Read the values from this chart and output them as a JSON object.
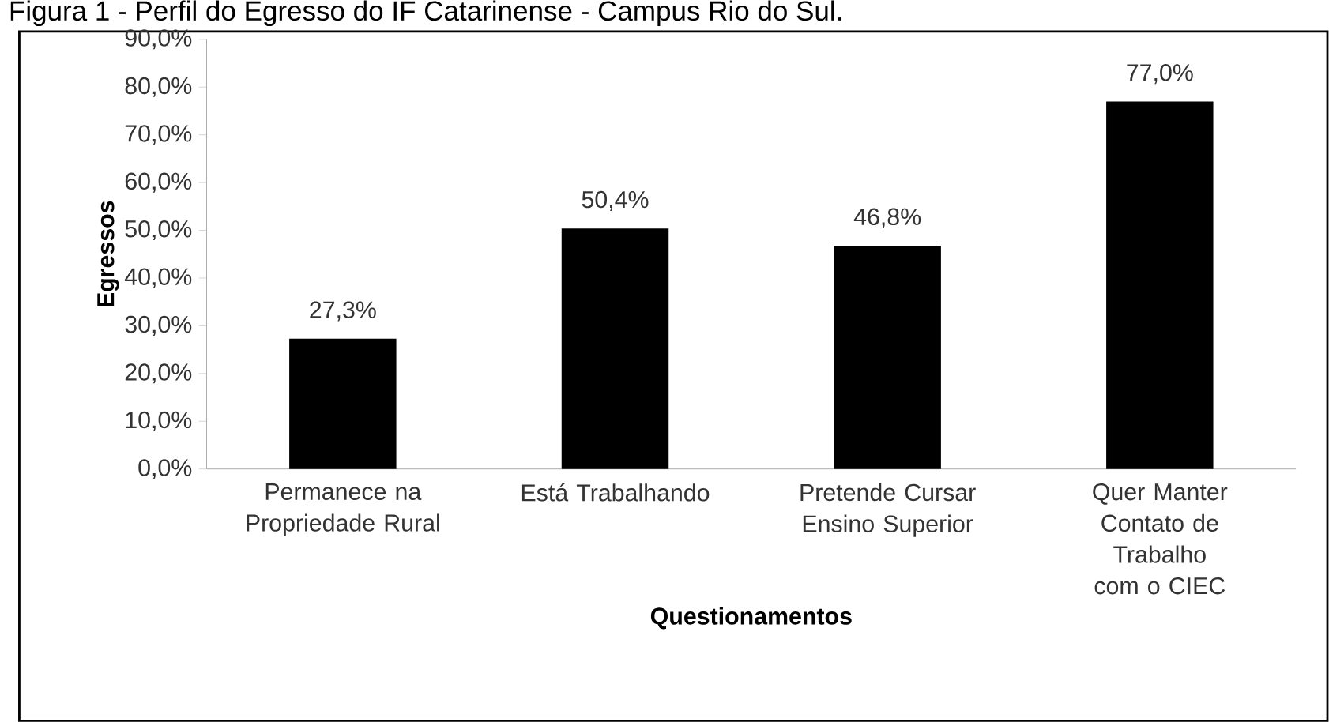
{
  "chart_data": {
    "type": "bar",
    "title": "Figura 1 - Perfil do Egresso do IF Catarinense - Campus Rio do Sul.",
    "xlabel": "Questionamentos",
    "ylabel": "Egressos",
    "categories": [
      "Permanece na Propriedade Rural",
      "Está Trabalhando",
      "Pretende Cursar Ensino Superior",
      "Quer Manter Contato de Trabalho com o CIEC"
    ],
    "values": [
      27.3,
      50.4,
      46.8,
      77.0
    ],
    "value_labels": [
      "27,3%",
      "50,4%",
      "46,8%",
      "77,0%"
    ],
    "color": "#000000",
    "ylim": [
      0,
      90
    ],
    "yticks": [
      {
        "value": 0,
        "label": "0,0%"
      },
      {
        "value": 10,
        "label": "10,0%"
      },
      {
        "value": 20,
        "label": "20,0%"
      },
      {
        "value": 30,
        "label": "30,0%"
      },
      {
        "value": 40,
        "label": "40,0%"
      },
      {
        "value": 50,
        "label": "50,0%"
      },
      {
        "value": 60,
        "label": "60,0%"
      },
      {
        "value": 70,
        "label": "70,0%"
      },
      {
        "value": 80,
        "label": "80,0%"
      },
      {
        "value": 90,
        "label": "90,0%"
      }
    ],
    "grid": false
  }
}
